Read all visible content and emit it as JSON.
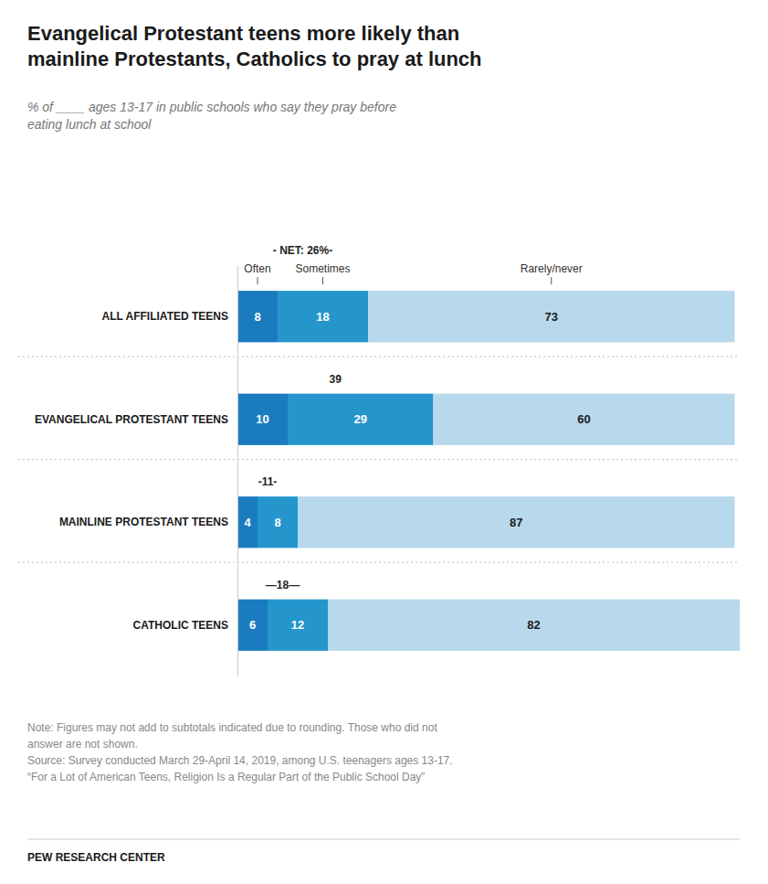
{
  "chart_data": {
    "type": "bar",
    "orientation": "horizontal",
    "stacked": true,
    "data_labels": true,
    "tick_labels": false,
    "title": "Evangelical Protestant teens more likely than\nmainline Protestants, Catholics to pray at lunch",
    "subtitle": "% of ____ ages 13-17 in public schools who say they pray before\neating lunch at school",
    "categories": [
      "ALL AFFILIATED TEENS",
      "EVANGELICAL PROTESTANT TEENS",
      "MAINLINE PROTESTANT TEENS",
      "CATHOLIC TEENS"
    ],
    "series": [
      {
        "name": "Often",
        "color": "#1a7bbf",
        "values": [
          8,
          10,
          4,
          6
        ]
      },
      {
        "name": "Sometimes",
        "color": "#2496cb",
        "values": [
          18,
          29,
          8,
          12
        ]
      },
      {
        "name": "Rarely/never",
        "color": "#b8d9ec",
        "values": [
          73,
          60,
          87,
          82
        ]
      }
    ],
    "net_values": [
      26,
      39,
      11,
      18
    ],
    "net_labels": [
      "- NET: 26%-",
      "39",
      "-11-",
      "—18—"
    ],
    "xlim": [
      0,
      100
    ],
    "note": "Note: Figures may not add to subtotals indicated due to rounding. Those who did not\nanswer are not shown.\nSource: Survey conducted March 29-April 14, 2019, among U.S. teenagers ages 13-17.\n“For a Lot of American Teens, Religion Is a Regular Part of the Public School Day”",
    "source": "PEW RESEARCH CENTER"
  }
}
